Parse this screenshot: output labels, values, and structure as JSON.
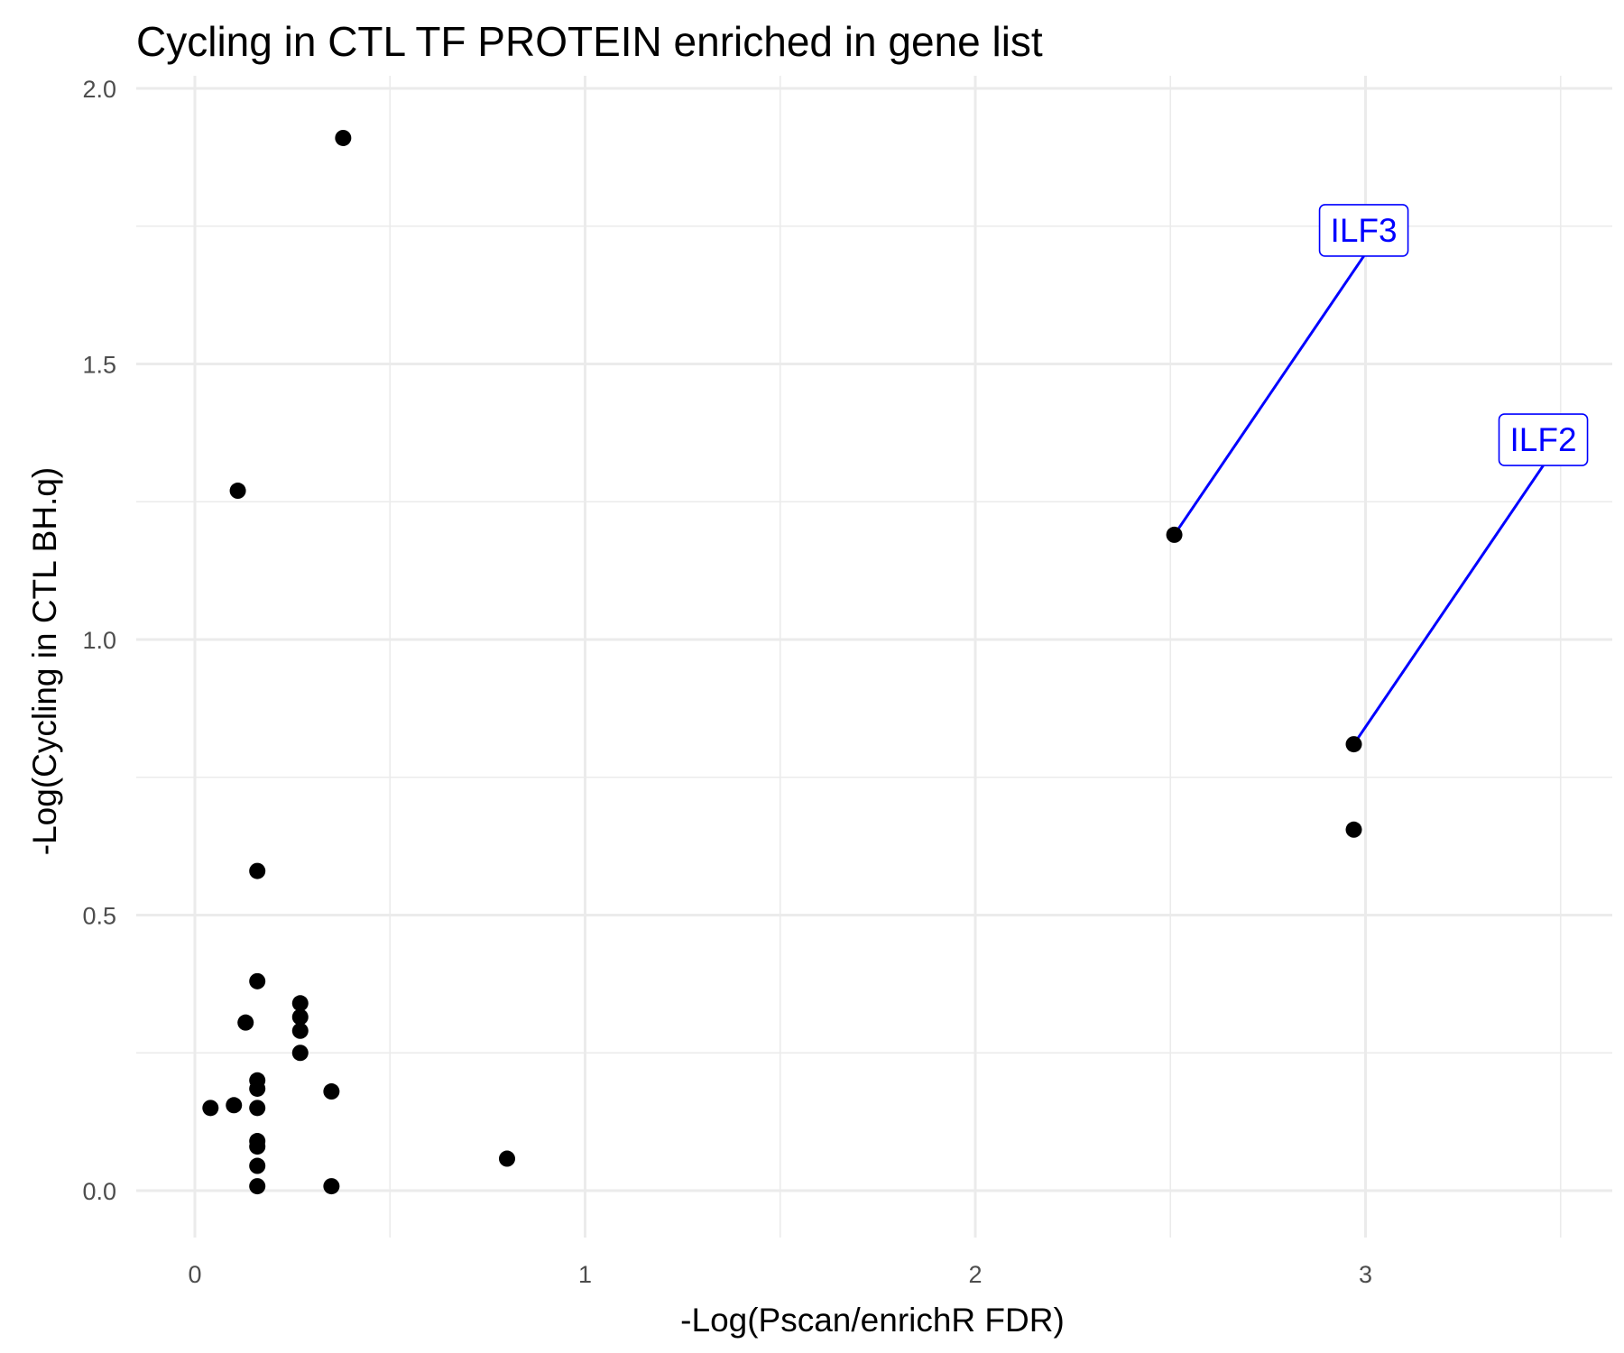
{
  "chart_data": {
    "type": "scatter",
    "title": "Cycling in CTL TF PROTEIN enriched in gene list",
    "xlabel": "-Log(Pscan/enrichR FDR)",
    "ylabel": "-Log(Cycling in CTL BH.q)",
    "xlim": [
      -0.15,
      3.6
    ],
    "ylim": [
      -0.08,
      2.02
    ],
    "x_ticks": [
      0,
      1,
      2,
      3
    ],
    "x_tick_labels": [
      "0",
      "1",
      "2",
      "3"
    ],
    "x_minor_ticks": [
      0.5,
      1.5,
      2.5,
      3.5
    ],
    "y_ticks": [
      0,
      0.5,
      1,
      1.5,
      2
    ],
    "y_tick_labels": [
      "0.0",
      "0.5",
      "1.0",
      "1.5",
      "2.0"
    ],
    "y_minor_ticks": [
      0.25,
      0.75,
      1.25,
      1.75
    ],
    "grid": true,
    "point_color": "#000000",
    "label_color": "#0000ff",
    "points": [
      {
        "x": 0.38,
        "y": 1.91
      },
      {
        "x": 0.11,
        "y": 1.27
      },
      {
        "x": 2.51,
        "y": 1.19
      },
      {
        "x": 2.97,
        "y": 0.81
      },
      {
        "x": 2.97,
        "y": 0.655
      },
      {
        "x": 0.16,
        "y": 0.58
      },
      {
        "x": 0.16,
        "y": 0.38
      },
      {
        "x": 0.27,
        "y": 0.34
      },
      {
        "x": 0.27,
        "y": 0.315
      },
      {
        "x": 0.13,
        "y": 0.305
      },
      {
        "x": 0.27,
        "y": 0.29
      },
      {
        "x": 0.27,
        "y": 0.25
      },
      {
        "x": 0.16,
        "y": 0.2
      },
      {
        "x": 0.16,
        "y": 0.185
      },
      {
        "x": 0.35,
        "y": 0.18
      },
      {
        "x": 0.1,
        "y": 0.155
      },
      {
        "x": 0.04,
        "y": 0.15
      },
      {
        "x": 0.16,
        "y": 0.15
      },
      {
        "x": 0.16,
        "y": 0.09
      },
      {
        "x": 0.16,
        "y": 0.08
      },
      {
        "x": 0.8,
        "y": 0.058
      },
      {
        "x": 0.16,
        "y": 0.045
      },
      {
        "x": 0.16,
        "y": 0.008
      },
      {
        "x": 0.35,
        "y": 0.008
      }
    ],
    "annotations": [
      {
        "text": "ILF3",
        "point_x": 2.51,
        "point_y": 1.19
      },
      {
        "text": "ILF2",
        "point_x": 2.97,
        "point_y": 0.81
      }
    ]
  }
}
